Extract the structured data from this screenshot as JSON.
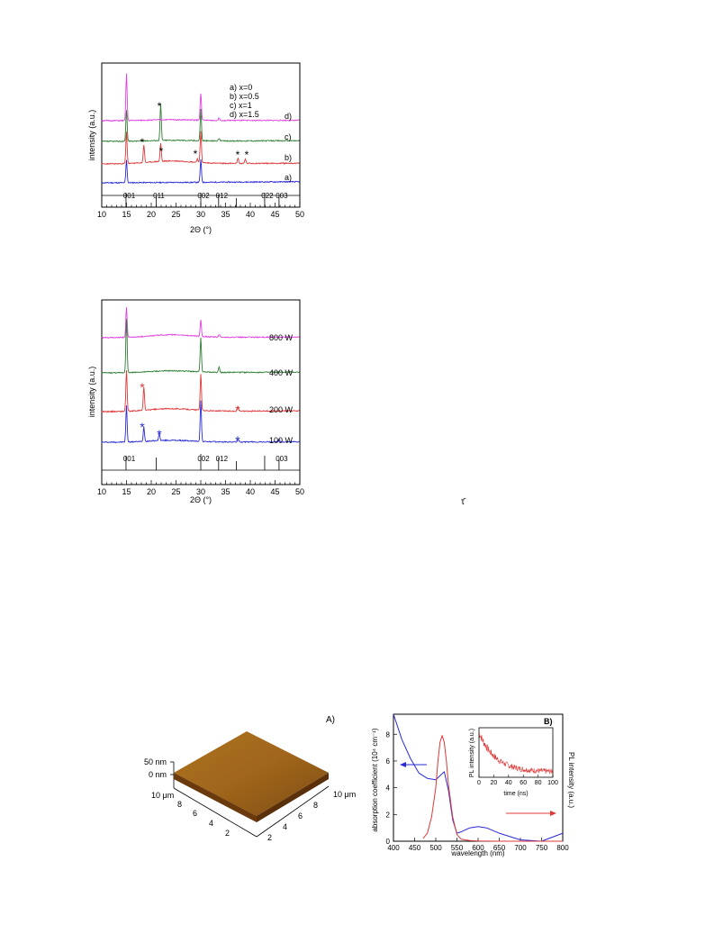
{
  "fig1": {
    "xlabel": "2Θ (°)",
    "ylabel": "intensity (a.u.)",
    "xticks": [
      "10",
      "15",
      "20",
      "25",
      "30",
      "35",
      "40",
      "45",
      "50"
    ],
    "legend": [
      "a) x=0",
      "b) x=0.5",
      "c) x=1",
      "d) x=1.5"
    ],
    "curve_labels": [
      "a)",
      "b)",
      "c)",
      "d)"
    ],
    "hkl": [
      "001",
      "011",
      "002",
      "012",
      "022",
      "003"
    ],
    "star": "*"
  },
  "fig2": {
    "xlabel": "2Θ (°)",
    "ylabel": "intensity (a.u.)",
    "xticks": [
      "10",
      "15",
      "20",
      "25",
      "30",
      "35",
      "40",
      "45",
      "50"
    ],
    "power_labels": [
      "800 W",
      "400 W",
      "200 W",
      "100 W"
    ],
    "hkl": [
      "001",
      "002",
      "012",
      "003"
    ],
    "star": "*"
  },
  "stray_mark": "τ̄",
  "figA": {
    "panel": "A)",
    "z_labels": [
      "50 nm",
      "0 nm"
    ],
    "y_axis_label": "10 μm",
    "y_ticks": [
      "8",
      "6",
      "4",
      "2"
    ],
    "x_axis_label": "10 μm",
    "x_ticks": [
      "8",
      "6",
      "4",
      "2"
    ]
  },
  "figB": {
    "panel": "B)",
    "xlabel": "wavelength (nm)",
    "ylabel_left": "absorption coefficient (10⁴ cm⁻¹)",
    "ylabel_right": "PL intensity (a.u.)",
    "xticks": [
      "400",
      "450",
      "500",
      "550",
      "600",
      "650",
      "700",
      "750",
      "800"
    ],
    "yticks": [
      "0",
      "2",
      "4",
      "6",
      "8"
    ],
    "inset_xlabel": "time (ns)",
    "inset_ylabel": "PL intensity (a.u.)",
    "inset_xticks": [
      "0",
      "20",
      "40",
      "60",
      "80",
      "100"
    ]
  },
  "chart_data": [
    {
      "type": "line",
      "xlabel": "2Θ (°)",
      "ylabel": "intensity (a.u.)",
      "xlim": [
        10,
        50
      ],
      "legend": "top-right",
      "series": [
        {
          "name": "a) x=0",
          "color": "#2a2ad8",
          "peaks": [
            15.0,
            30.0
          ]
        },
        {
          "name": "b) x=0.5",
          "color": "#e03838",
          "peaks": [
            15.0,
            18.5,
            21.9,
            29.3,
            30.0,
            37.5,
            39.0
          ]
        },
        {
          "name": "c) x=1",
          "color": "#2e7d32",
          "peaks": [
            15.0,
            21.9,
            30.0,
            33.7
          ]
        },
        {
          "name": "d) x=1.5",
          "color": "#e040e0",
          "peaks": [
            15.0,
            30.0,
            33.7
          ]
        }
      ],
      "reference_lines": [
        14.9,
        21.0,
        30.0,
        33.6,
        37.2,
        42.9,
        45.8
      ]
    },
    {
      "type": "line",
      "xlabel": "2Θ (°)",
      "ylabel": "intensity (a.u.)",
      "xlim": [
        10,
        50
      ],
      "series": [
        {
          "name": "800 W",
          "color": "#e040e0",
          "peaks": [
            15.0,
            30.0,
            33.7
          ]
        },
        {
          "name": "400 W",
          "color": "#2e7d32",
          "peaks": [
            15.0,
            30.0,
            33.7
          ]
        },
        {
          "name": "200 W",
          "color": "#e03838",
          "peaks": [
            15.0,
            18.5,
            30.0,
            37.5
          ]
        },
        {
          "name": "100 W",
          "color": "#2a2ad8",
          "peaks": [
            15.0,
            18.5,
            21.6,
            30.0,
            37.5,
            45.8
          ]
        }
      ],
      "reference_lines": [
        14.9,
        21.0,
        30.0,
        33.6,
        37.2,
        42.9,
        45.8
      ]
    },
    {
      "type": "line",
      "xlabel": "wavelength (nm)",
      "ylabel": "absorption coefficient (10⁴ cm⁻¹)",
      "xlim": [
        400,
        800
      ],
      "ylim": [
        0,
        9.5
      ],
      "series": [
        {
          "name": "absorption",
          "color": "#2a2ad8",
          "x": [
            400,
            420,
            440,
            460,
            480,
            500,
            510,
            520,
            530,
            540,
            550,
            560,
            580,
            600,
            620,
            650,
            700,
            750,
            800
          ],
          "y": [
            9.5,
            7.6,
            6.2,
            5.1,
            4.7,
            4.6,
            4.9,
            5.2,
            3.8,
            1.6,
            0.6,
            0.7,
            1.0,
            1.1,
            1.0,
            0.6,
            0.1,
            0.0,
            0.6
          ]
        },
        {
          "name": "PL",
          "color": "#e03838",
          "x": [
            470,
            480,
            490,
            500,
            505,
            510,
            515,
            520,
            525,
            530,
            540,
            550,
            560,
            580,
            600,
            650,
            700,
            750,
            800
          ],
          "y": [
            0.2,
            0.6,
            1.8,
            4.0,
            6.0,
            7.4,
            7.9,
            7.4,
            6.0,
            4.2,
            1.8,
            0.5,
            0.15,
            0.05,
            0.02,
            0.0,
            0.0,
            0.0,
            0.0
          ]
        }
      ]
    }
  ]
}
